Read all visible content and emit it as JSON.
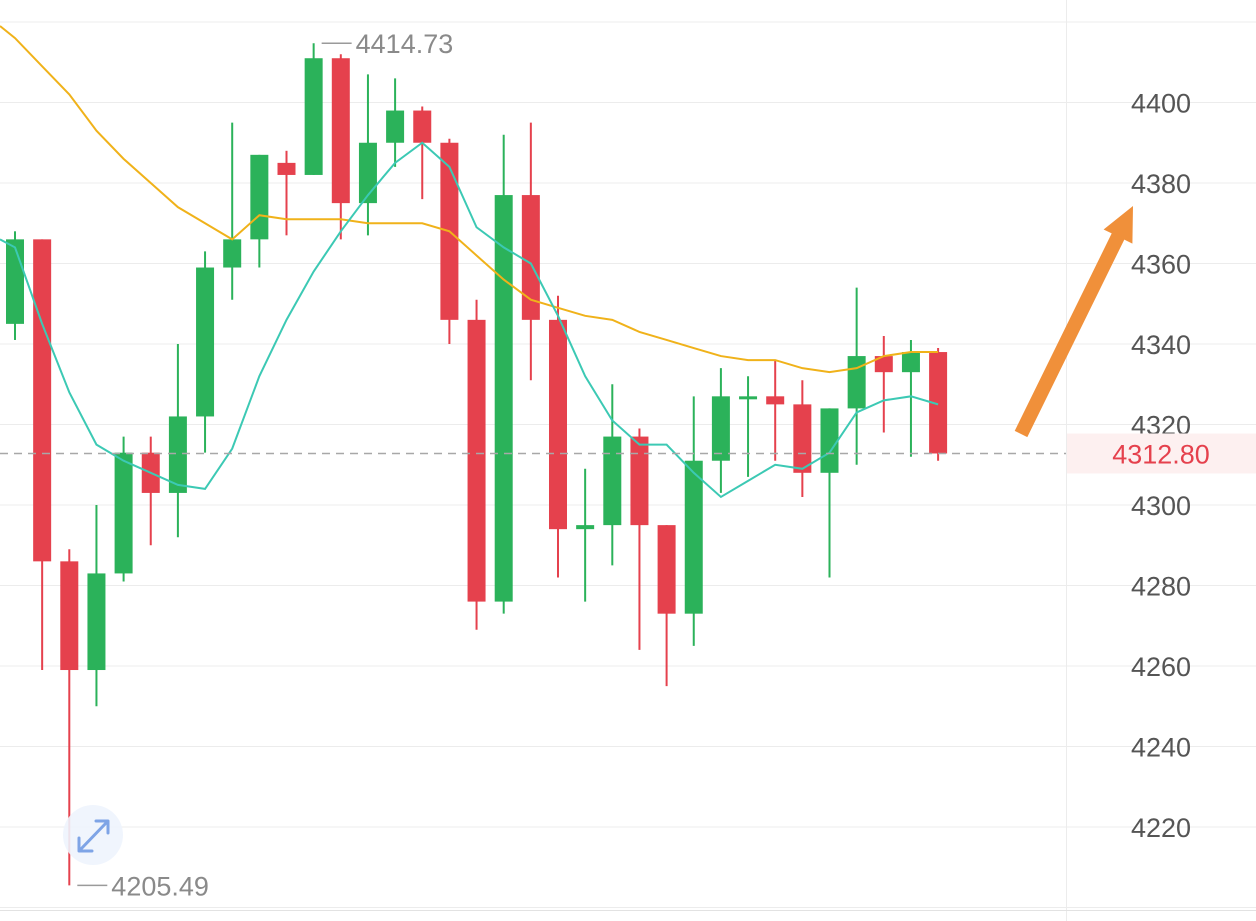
{
  "colors": {
    "up": "#2bb25a",
    "down": "#e5414d",
    "ma_short": "#3cc9b4",
    "ma_long": "#f0b21a",
    "grid": "#ececec",
    "current_price": "#e5414d",
    "current_price_bg": "#fdf0f0",
    "arrow": "#f0903a",
    "axis_text": "#555555"
  },
  "chart_data": {
    "type": "candlestick",
    "y_axis": {
      "ticks": [
        4220,
        4240,
        4260,
        4280,
        4300,
        4320,
        4340,
        4360,
        4380,
        4400
      ],
      "position": "right"
    },
    "current_price": "4312.80",
    "current_price_value": 4312.8,
    "high_marker": "4414.73",
    "high_value": 4414.73,
    "low_marker": "4205.49",
    "low_value": 4205.49,
    "trend_arrow": "up",
    "candles": [
      {
        "o": 4345,
        "h": 4368,
        "l": 4341,
        "c": 4366
      },
      {
        "o": 4366,
        "h": 4366,
        "l": 4259,
        "c": 4286
      },
      {
        "o": 4286,
        "h": 4289,
        "l": 4205.49,
        "c": 4259
      },
      {
        "o": 4259,
        "h": 4300,
        "l": 4250,
        "c": 4283
      },
      {
        "o": 4283,
        "h": 4317,
        "l": 4281,
        "c": 4313
      },
      {
        "o": 4313,
        "h": 4317,
        "l": 4290,
        "c": 4303
      },
      {
        "o": 4303,
        "h": 4340,
        "l": 4292,
        "c": 4322
      },
      {
        "o": 4322,
        "h": 4363,
        "l": 4313,
        "c": 4359
      },
      {
        "o": 4359,
        "h": 4395,
        "l": 4351,
        "c": 4366
      },
      {
        "o": 4366,
        "h": 4387,
        "l": 4359,
        "c": 4387
      },
      {
        "o": 4385,
        "h": 4388,
        "l": 4367,
        "c": 4382
      },
      {
        "o": 4382,
        "h": 4414.73,
        "l": 4382,
        "c": 4411
      },
      {
        "o": 4411,
        "h": 4412,
        "l": 4366,
        "c": 4375
      },
      {
        "o": 4375,
        "h": 4407,
        "l": 4367,
        "c": 4390
      },
      {
        "o": 4390,
        "h": 4406,
        "l": 4384,
        "c": 4398
      },
      {
        "o": 4398,
        "h": 4399,
        "l": 4376,
        "c": 4390
      },
      {
        "o": 4390,
        "h": 4391,
        "l": 4340,
        "c": 4346
      },
      {
        "o": 4346,
        "h": 4351,
        "l": 4269,
        "c": 4276
      },
      {
        "o": 4276,
        "h": 4392,
        "l": 4273,
        "c": 4377
      },
      {
        "o": 4377,
        "h": 4395,
        "l": 4331,
        "c": 4346
      },
      {
        "o": 4346,
        "h": 4352,
        "l": 4282,
        "c": 4294
      },
      {
        "o": 4294,
        "h": 4309,
        "l": 4276,
        "c": 4295
      },
      {
        "o": 4295,
        "h": 4330,
        "l": 4285,
        "c": 4317
      },
      {
        "o": 4317,
        "h": 4319,
        "l": 4264,
        "c": 4295
      },
      {
        "o": 4295,
        "h": 4295,
        "l": 4255,
        "c": 4273
      },
      {
        "o": 4273,
        "h": 4327,
        "l": 4265,
        "c": 4311
      },
      {
        "o": 4311,
        "h": 4334,
        "l": 4303,
        "c": 4327
      },
      {
        "o": 4327,
        "h": 4332,
        "l": 4307,
        "c": 4327
      },
      {
        "o": 4327,
        "h": 4336,
        "l": 4311,
        "c": 4325
      },
      {
        "o": 4325,
        "h": 4331,
        "l": 4302,
        "c": 4308
      },
      {
        "o": 4308,
        "h": 4324,
        "l": 4282,
        "c": 4324
      },
      {
        "o": 4324,
        "h": 4354,
        "l": 4310,
        "c": 4337
      },
      {
        "o": 4337,
        "h": 4342,
        "l": 4318,
        "c": 4333
      },
      {
        "o": 4333,
        "h": 4341,
        "l": 4312,
        "c": 4338
      },
      {
        "o": 4338,
        "h": 4339,
        "l": 4311,
        "c": 4312.8
      }
    ],
    "ma_short": [
      4364,
      4345,
      4328,
      4315,
      4311,
      4308,
      4305,
      4304,
      4314,
      4332,
      4346,
      4358,
      4368,
      4377,
      4385,
      4390,
      4384,
      4369,
      4364,
      4360,
      4347,
      4332,
      4321,
      4315,
      4315,
      4308,
      4302,
      4306,
      4310,
      4309,
      4313,
      4323,
      4326,
      4327,
      4325
    ],
    "ma_long": [
      4416,
      4409,
      4402,
      4393,
      4386,
      4380,
      4374,
      4370,
      4366,
      4372,
      4371,
      4371,
      4371,
      4370,
      4370,
      4370,
      4368,
      4362,
      4356,
      4351,
      4349,
      4347,
      4346,
      4343,
      4341,
      4339,
      4337,
      4336,
      4336,
      4334,
      4333,
      4334,
      4337,
      4338,
      4338
    ]
  }
}
